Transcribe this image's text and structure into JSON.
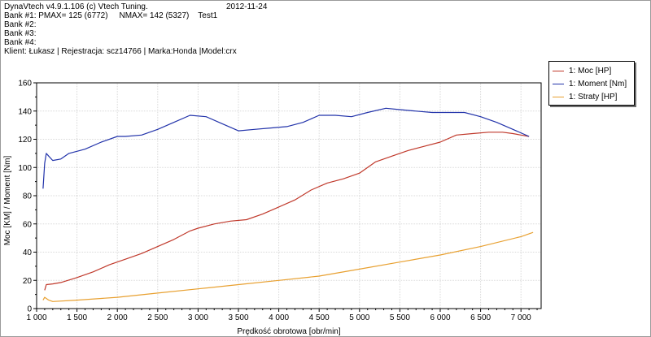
{
  "header": {
    "line1": "DynaVtech v4.9.1.106 (c) Vtech Tuning.",
    "date": "2012-11-24",
    "line2": "Bank #1: PMAX= 125 (6772)     NMAX= 142 (5327)    Test1",
    "line3": "Bank #2:",
    "line4": "Bank #3:",
    "line5": "Bank #4:",
    "line6": "Klient: Łukasz | Rejestracja: scz14766 | Marka:Honda |Model:crx"
  },
  "chart_data": {
    "type": "line",
    "xlabel": "Prędkość obrotowa [obr/min]",
    "ylabel": "Moc [KM] / Moment [Nm]",
    "xlim": [
      1000,
      7250
    ],
    "ylim": [
      0,
      160
    ],
    "xticks": [
      1000,
      1500,
      2000,
      2500,
      3000,
      3500,
      4000,
      4500,
      5000,
      5500,
      6000,
      6500,
      7000
    ],
    "xtick_labels": [
      "1 000",
      "1 500",
      "2 000",
      "2 500",
      "3 000",
      "3 500",
      "4 000",
      "4 500",
      "5 000",
      "5 500",
      "6 000",
      "6 500",
      "7 000"
    ],
    "yticks": [
      0,
      20,
      40,
      60,
      80,
      100,
      120,
      140,
      160
    ],
    "legend_position": "top-right",
    "series": [
      {
        "name": "1: Moc [HP]",
        "color": "#c0392b",
        "points": [
          [
            1100,
            13
          ],
          [
            1120,
            17
          ],
          [
            1200,
            17.5
          ],
          [
            1300,
            18.5
          ],
          [
            1500,
            22
          ],
          [
            1700,
            26
          ],
          [
            1900,
            31
          ],
          [
            2100,
            35
          ],
          [
            2300,
            39
          ],
          [
            2500,
            44
          ],
          [
            2700,
            49
          ],
          [
            2900,
            55
          ],
          [
            3000,
            57
          ],
          [
            3200,
            60
          ],
          [
            3400,
            62
          ],
          [
            3600,
            63
          ],
          [
            3800,
            67
          ],
          [
            4000,
            72
          ],
          [
            4200,
            77
          ],
          [
            4400,
            84
          ],
          [
            4600,
            89
          ],
          [
            4800,
            92
          ],
          [
            5000,
            96
          ],
          [
            5200,
            104
          ],
          [
            5400,
            108
          ],
          [
            5600,
            112
          ],
          [
            5800,
            115
          ],
          [
            6000,
            118
          ],
          [
            6200,
            123
          ],
          [
            6400,
            124
          ],
          [
            6600,
            125
          ],
          [
            6772,
            125
          ],
          [
            6900,
            124
          ],
          [
            7000,
            123
          ],
          [
            7100,
            122
          ]
        ]
      },
      {
        "name": "1: Moment [Nm]",
        "color": "#2233aa",
        "points": [
          [
            1080,
            85
          ],
          [
            1100,
            103
          ],
          [
            1120,
            110
          ],
          [
            1150,
            108
          ],
          [
            1200,
            105
          ],
          [
            1300,
            106
          ],
          [
            1400,
            110
          ],
          [
            1600,
            113
          ],
          [
            1800,
            118
          ],
          [
            2000,
            122
          ],
          [
            2100,
            122
          ],
          [
            2300,
            123
          ],
          [
            2500,
            127
          ],
          [
            2700,
            132
          ],
          [
            2900,
            137
          ],
          [
            3100,
            136
          ],
          [
            3300,
            131
          ],
          [
            3500,
            126
          ],
          [
            3700,
            127
          ],
          [
            3900,
            128
          ],
          [
            4100,
            129
          ],
          [
            4300,
            132
          ],
          [
            4500,
            137
          ],
          [
            4700,
            137
          ],
          [
            4900,
            136
          ],
          [
            5100,
            139
          ],
          [
            5327,
            142
          ],
          [
            5500,
            141
          ],
          [
            5700,
            140
          ],
          [
            5900,
            139
          ],
          [
            6100,
            139
          ],
          [
            6300,
            139
          ],
          [
            6500,
            136
          ],
          [
            6700,
            132
          ],
          [
            6900,
            127
          ],
          [
            7100,
            122
          ]
        ]
      },
      {
        "name": "1: Straty [HP]",
        "color": "#e8a030",
        "points": [
          [
            1080,
            6
          ],
          [
            1100,
            8
          ],
          [
            1150,
            6
          ],
          [
            1200,
            5
          ],
          [
            1500,
            6
          ],
          [
            2000,
            8
          ],
          [
            2500,
            11
          ],
          [
            3000,
            14
          ],
          [
            3500,
            17
          ],
          [
            4000,
            20
          ],
          [
            4500,
            23
          ],
          [
            5000,
            28
          ],
          [
            5500,
            33
          ],
          [
            6000,
            38
          ],
          [
            6500,
            44
          ],
          [
            7000,
            51
          ],
          [
            7150,
            54
          ]
        ]
      }
    ]
  }
}
